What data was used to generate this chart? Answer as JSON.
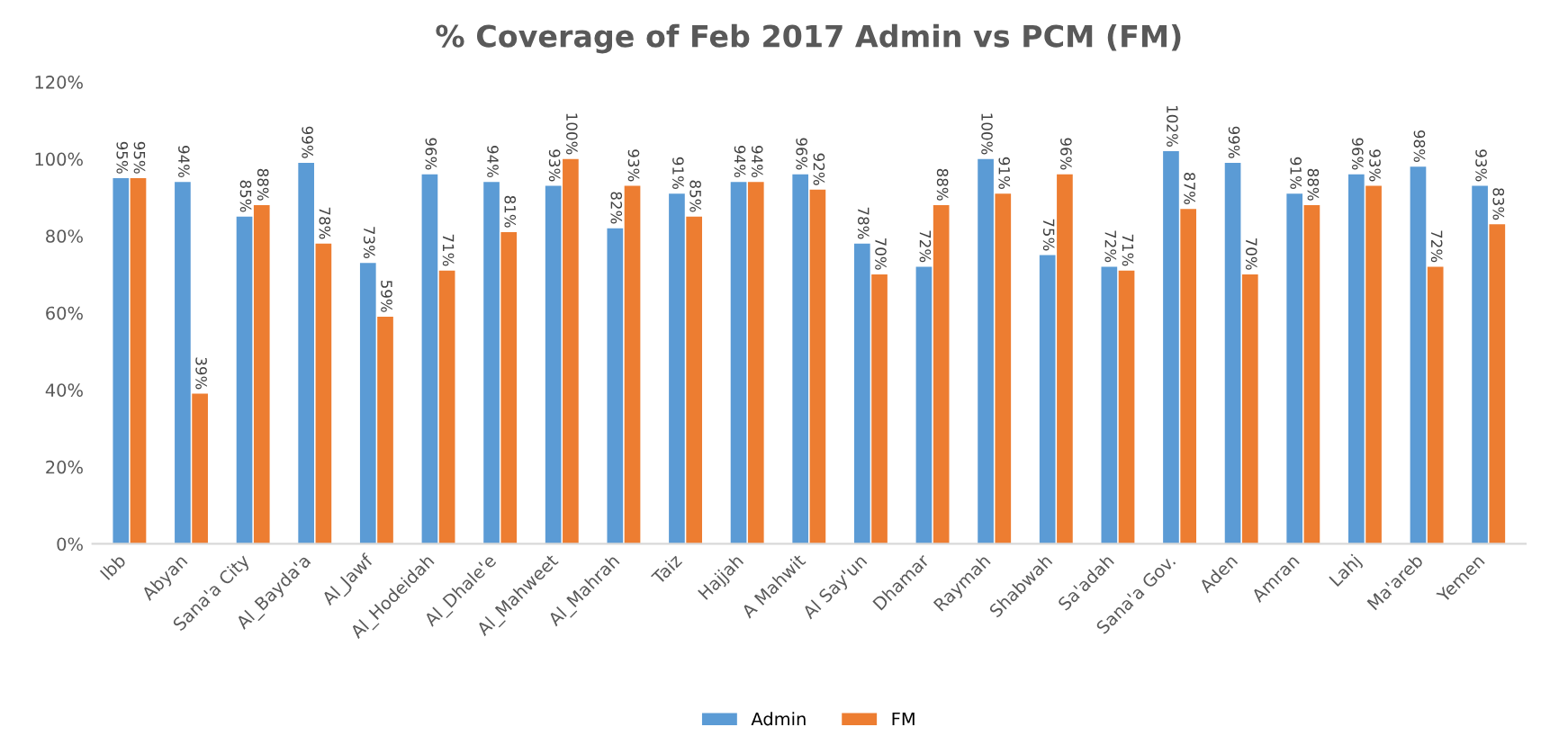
{
  "chart_data": {
    "type": "bar",
    "title": "% Coverage of Feb 2017 Admin vs PCM (FM)",
    "categories": [
      "Ibb",
      "Abyan",
      "Sana'a City",
      "Al_Bayda'a",
      "Al_Jawf",
      "Al_Hodeidah",
      "Al_Dhale'e",
      "Al_Mahweet",
      "Al_Mahrah",
      "Taiz",
      "Hajjah",
      "A Mahwit",
      "Al Say'un",
      "Dhamar",
      "Raymah",
      "Shabwah",
      "Sa'adah",
      "Sana'a Gov.",
      "Aden",
      "Amran",
      "Lahj",
      "Ma'areb",
      "Yemen"
    ],
    "series": [
      {
        "name": "Admin",
        "color": "#5b9bd5",
        "values": [
          95,
          94,
          85,
          99,
          73,
          96,
          94,
          93,
          82,
          91,
          94,
          96,
          78,
          72,
          100,
          75,
          72,
          102,
          99,
          91,
          96,
          98,
          93
        ],
        "value_labels": [
          "95%",
          "94%",
          "85%",
          "99%",
          "73%",
          "96%",
          "94%",
          "93%",
          "82%",
          "91%",
          "94%",
          "96%",
          "78%",
          "72%",
          "100%",
          "75%",
          "72%",
          "102%",
          "99%",
          "91%",
          "96%",
          "98%",
          "93%"
        ]
      },
      {
        "name": "FM",
        "color": "#ed7d31",
        "values": [
          95,
          39,
          88,
          78,
          59,
          71,
          81,
          100,
          93,
          85,
          94,
          92,
          70,
          88,
          91,
          96,
          71,
          87,
          70,
          88,
          93,
          72,
          83
        ],
        "value_labels": [
          "95%",
          "39%",
          "88%",
          "78%",
          "59%",
          "71%",
          "81%",
          "100%",
          "93%",
          "85%",
          "94%",
          "92%",
          "70%",
          "88%",
          "91%",
          "96%",
          "71%",
          "87%",
          "70%",
          "88%",
          "93%",
          "72%",
          "83%"
        ]
      }
    ],
    "ylim": [
      0,
      120
    ],
    "yticks": [
      {
        "value": 0,
        "label": "0%"
      },
      {
        "value": 20,
        "label": "20%"
      },
      {
        "value": 40,
        "label": "40%"
      },
      {
        "value": 60,
        "label": "60%"
      },
      {
        "value": 80,
        "label": "80%"
      },
      {
        "value": 100,
        "label": "100%"
      },
      {
        "value": 120,
        "label": "120%"
      }
    ],
    "legend": "bottom"
  }
}
